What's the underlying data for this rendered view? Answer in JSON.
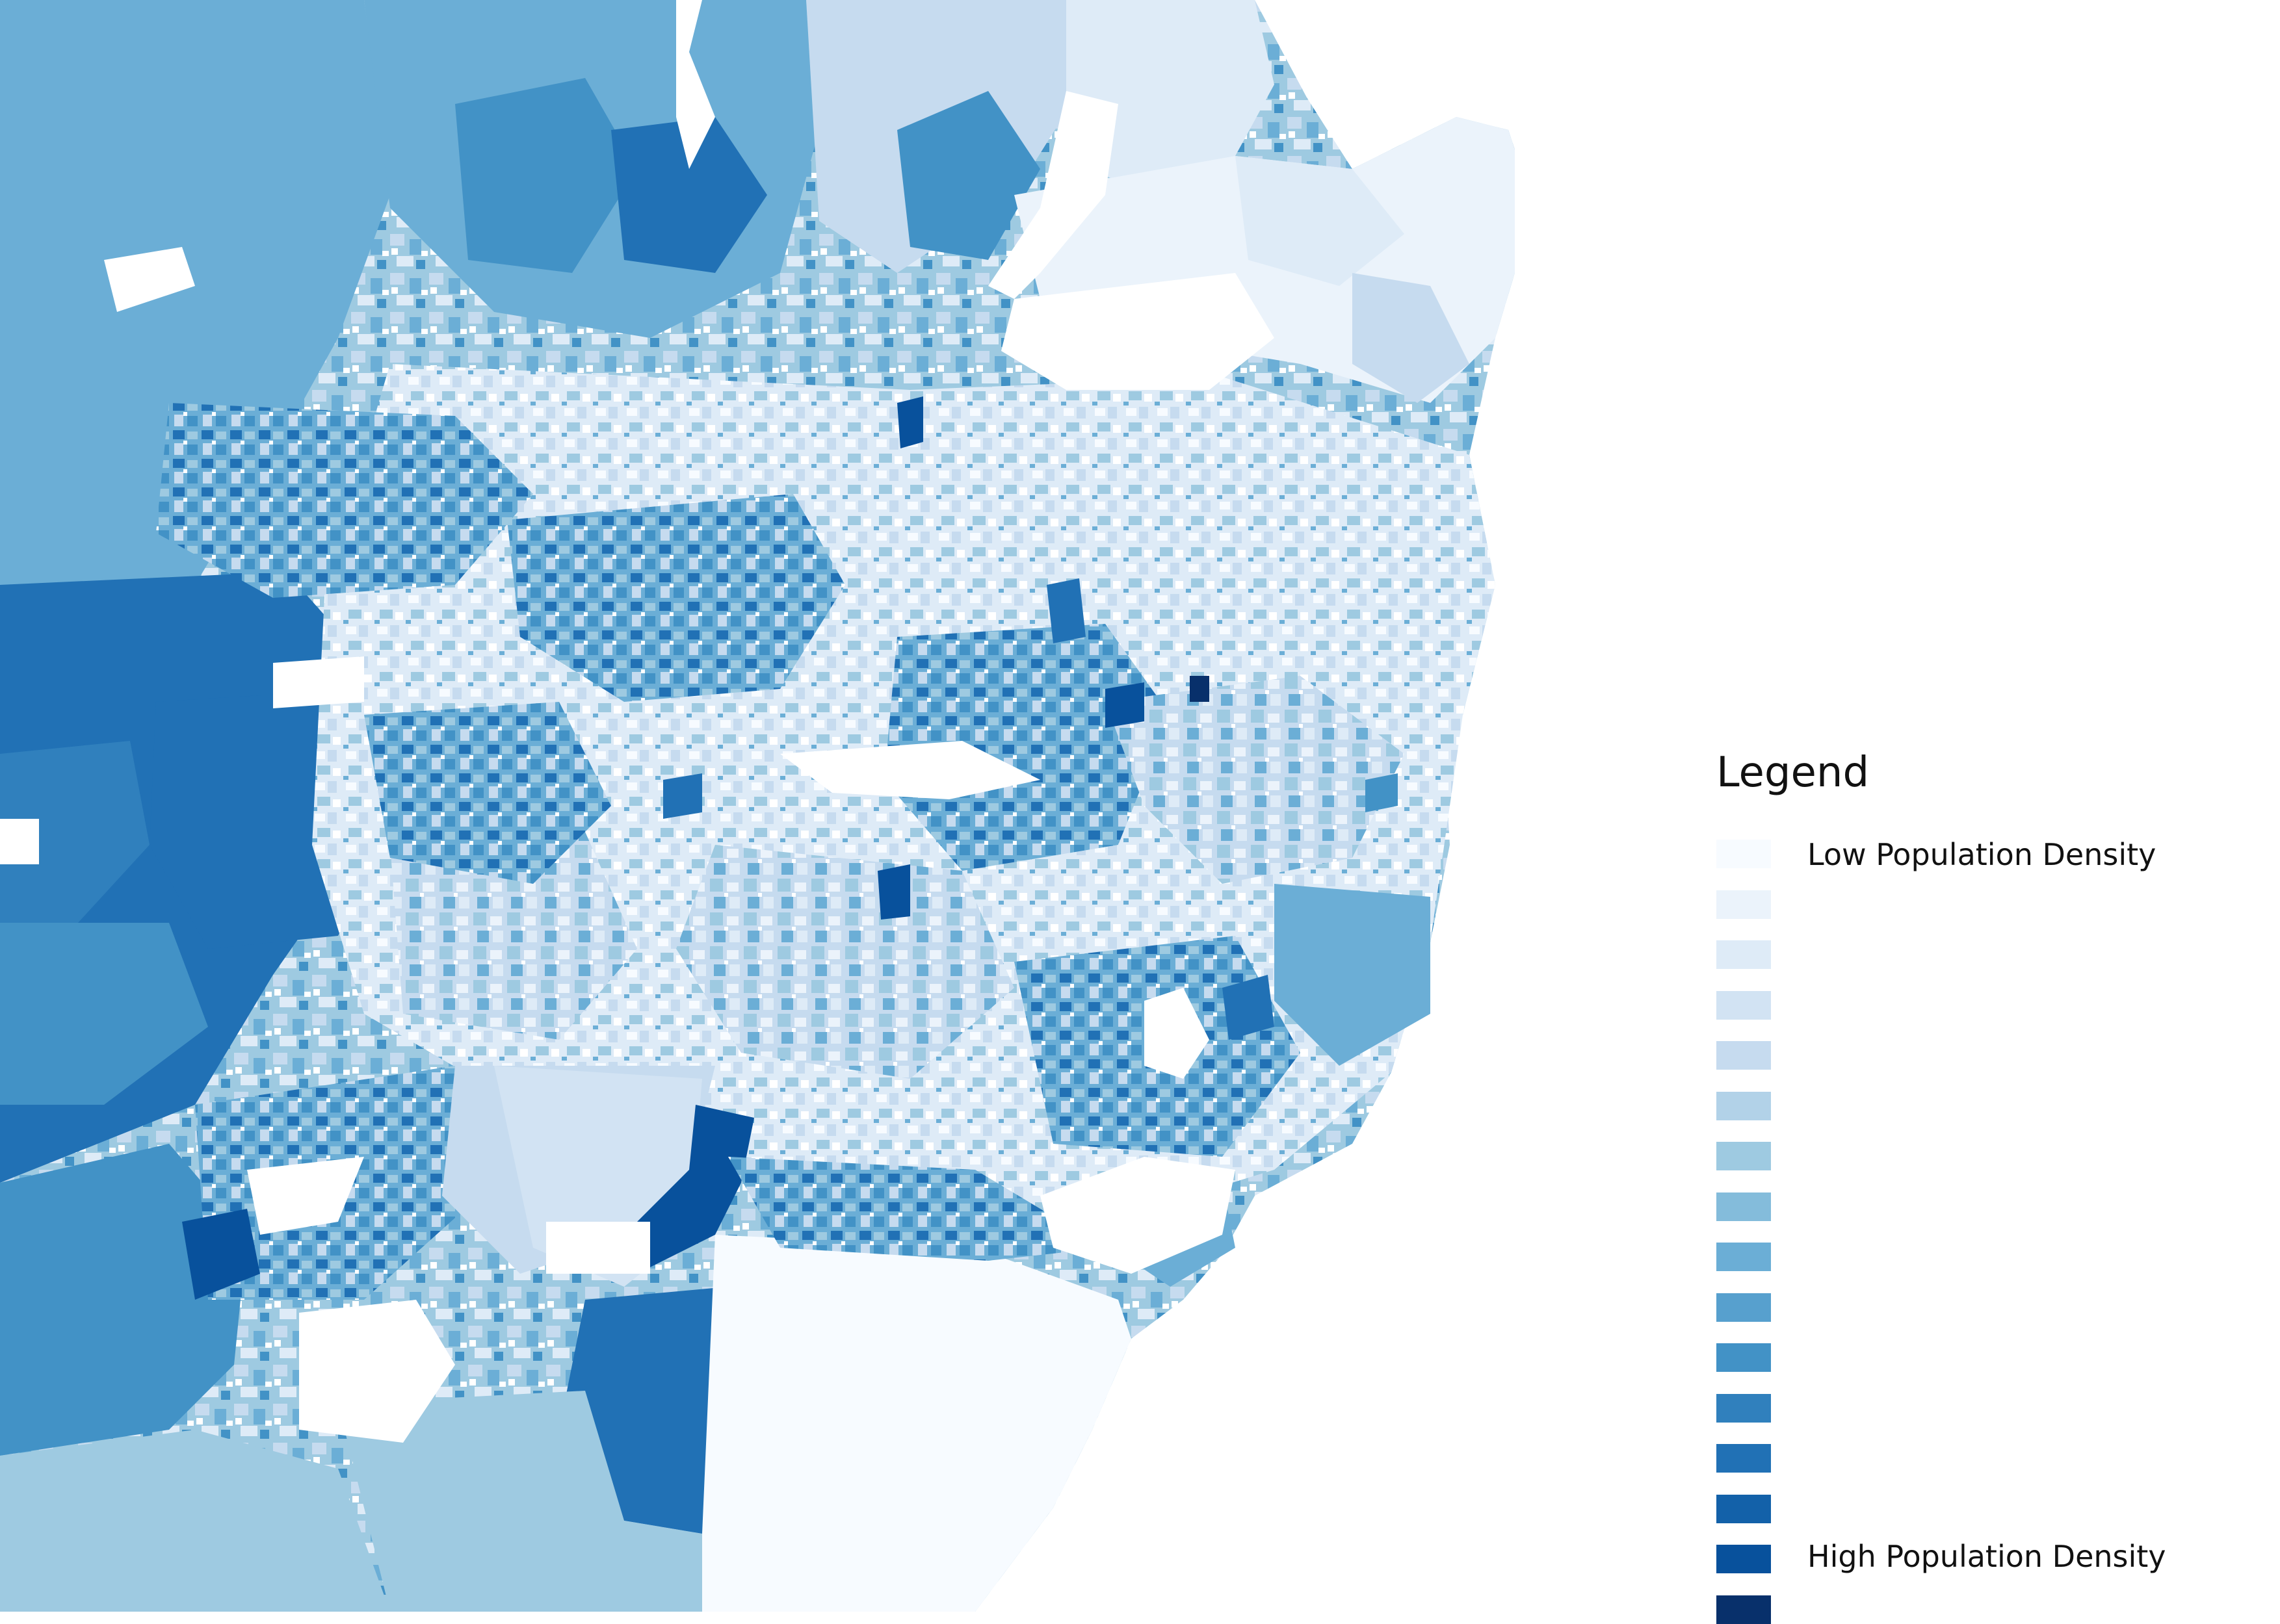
{
  "legend": {
    "title": "Legend",
    "low_label": "Low Population Density",
    "high_label": "High Population Density",
    "classes": [
      "#f7fbff",
      "#ebf3fb",
      "#deebf7",
      "#d2e3f3",
      "#c6dbef",
      "#b2d2e8",
      "#9ecae1",
      "#84bcdb",
      "#6baed6",
      "#57a0ce",
      "#4292c6",
      "#3080bd",
      "#2171b5",
      "#1361a9",
      "#08519c"
    ],
    "high_color": "#08306b"
  }
}
